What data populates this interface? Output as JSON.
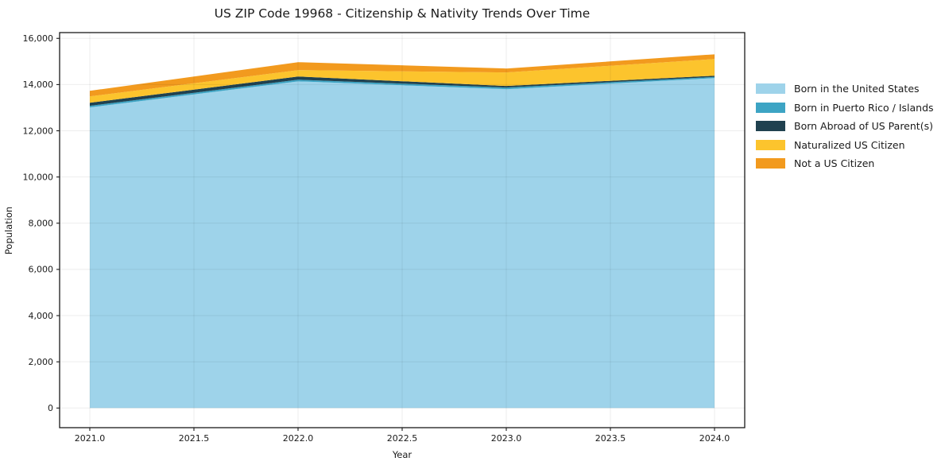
{
  "title": "US ZIP Code 19968 - Citizenship & Nativity Trends Over Time",
  "chart_data": {
    "type": "area",
    "stacked": true,
    "title": "US ZIP Code 19968 - Citizenship & Nativity Trends Over Time",
    "xlabel": "Year",
    "ylabel": "Population",
    "x": [
      2021,
      2022,
      2023,
      2024
    ],
    "series": [
      {
        "name": "Born in the United States",
        "color": "#9ED3EA",
        "values": [
          13010,
          14140,
          13800,
          14280
        ]
      },
      {
        "name": "Born in Puerto Rico / Islands",
        "color": "#3DA4C4",
        "values": [
          70,
          70,
          70,
          50
        ]
      },
      {
        "name": "Born Abroad of US Parent(s)",
        "color": "#20414F",
        "values": [
          135,
          140,
          70,
          55
        ]
      },
      {
        "name": "Naturalized US Citizen",
        "color": "#FCC42D",
        "values": [
          275,
          275,
          585,
          720
        ]
      },
      {
        "name": "Not a US Citizen",
        "color": "#F29A1E",
        "values": [
          240,
          345,
          170,
          205
        ]
      }
    ],
    "stack_totals": [
      13730,
      14970,
      14695,
      15310
    ],
    "xlim": [
      2020.855,
      2024.145
    ],
    "ylim": [
      -850,
      16250
    ],
    "xticks": [
      2021.0,
      2021.5,
      2022.0,
      2022.5,
      2023.0,
      2023.5,
      2024.0
    ],
    "xtick_labels": [
      "2021.0",
      "2021.5",
      "2022.0",
      "2022.5",
      "2023.0",
      "2023.5",
      "2024.0"
    ],
    "yticks": [
      0,
      2000,
      4000,
      6000,
      8000,
      10000,
      12000,
      14000,
      16000
    ],
    "ytick_labels": [
      "0",
      "2,000",
      "4,000",
      "6,000",
      "8,000",
      "10,000",
      "12,000",
      "14,000",
      "16,000"
    ],
    "grid": true,
    "legend_position": "right",
    "grid_color": "rgba(0,0,0,0.07)",
    "spine_color": "#1a1a1a",
    "background": "#ffffff"
  }
}
